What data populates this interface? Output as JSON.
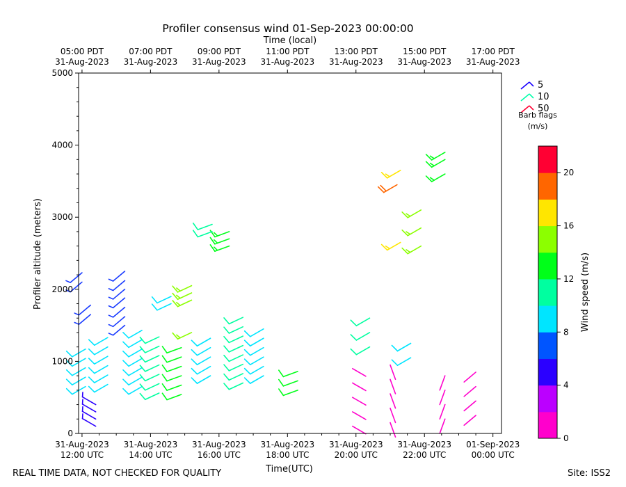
{
  "chart_data": {
    "type": "wind-barb",
    "title": "Profiler consensus wind 01-Sep-2023 00:00:00",
    "top_axis_label": "Time (local)",
    "xlabel": "Time(UTC)",
    "ylabel": "Profiler altitude (meters)",
    "x_range_hours_utc": [
      11.9,
      24.25
    ],
    "ylim": [
      0,
      5000
    ],
    "y_ticks": [
      "0",
      "1000",
      "2000",
      "3000",
      "4000",
      "5000"
    ],
    "x_ticks_utc": [
      {
        "hour": 12,
        "time": "31-Aug-2023",
        "date": "12:00 UTC"
      },
      {
        "hour": 14,
        "time": "31-Aug-2023",
        "date": "14:00 UTC"
      },
      {
        "hour": 16,
        "time": "31-Aug-2023",
        "date": "16:00 UTC"
      },
      {
        "hour": 18,
        "time": "31-Aug-2023",
        "date": "18:00 UTC"
      },
      {
        "hour": 20,
        "time": "31-Aug-2023",
        "date": "20:00 UTC"
      },
      {
        "hour": 22,
        "time": "31-Aug-2023",
        "date": "22:00 UTC"
      },
      {
        "hour": 24,
        "time": "01-Sep-2023",
        "date": "00:00 UTC"
      }
    ],
    "x_ticks_local": [
      {
        "hour": 12,
        "time": "05:00 PDT",
        "date": "31-Aug-2023"
      },
      {
        "hour": 14,
        "time": "07:00 PDT",
        "date": "31-Aug-2023"
      },
      {
        "hour": 16,
        "time": "09:00 PDT",
        "date": "31-Aug-2023"
      },
      {
        "hour": 18,
        "time": "11:00 PDT",
        "date": "31-Aug-2023"
      },
      {
        "hour": 20,
        "time": "13:00 PDT",
        "date": "31-Aug-2023"
      },
      {
        "hour": 22,
        "time": "15:00 PDT",
        "date": "31-Aug-2023"
      },
      {
        "hour": 24,
        "time": "17:00 PDT",
        "date": "31-Aug-2023"
      }
    ],
    "barb_legend": {
      "entries": [
        {
          "label": "5",
          "color": "#1a00ff"
        },
        {
          "label": "10",
          "color": "#00ffaa"
        },
        {
          "label": "50",
          "color": "#ff0033"
        }
      ],
      "title_line1": "Barb flags",
      "title_line2": "(m/s)"
    },
    "colorbar": {
      "label": "Wind speed (m/s)",
      "range": [
        0,
        22
      ],
      "ticks": [
        "0",
        "4",
        "8",
        "12",
        "16",
        "20"
      ],
      "colors": [
        "#ff00cc",
        "#bb00ff",
        "#2b00ff",
        "#0055ff",
        "#00e5ff",
        "#00ffa0",
        "#00ff19",
        "#8cff00",
        "#ffe600",
        "#ff6600",
        "#ff0033"
      ]
    },
    "series": [
      {
        "name": "upper-west-a",
        "time_utc": 12.0,
        "color": "#1a3cff",
        "speed": 7,
        "dir": 230,
        "altitudes": [
          2100,
          2230
        ]
      },
      {
        "name": "upper-west-b",
        "time_utc": 12.25,
        "color": "#1a3cff",
        "speed": 7,
        "dir": 230,
        "altitudes": [
          1650,
          1780
        ]
      },
      {
        "name": "mid-0",
        "time_utc": 12.1,
        "color": "#00e5ff",
        "speed": 9,
        "dir": 240,
        "altitudes": [
          650,
          780,
          910,
          1040,
          1170
        ]
      },
      {
        "name": "mid-1",
        "time_utc": 12.75,
        "color": "#00e5ff",
        "speed": 9,
        "dir": 240,
        "altitudes": [
          680,
          810,
          940,
          1070,
          1200,
          1330
        ]
      },
      {
        "name": "mid-2",
        "time_utc": 13.25,
        "color": "#1a3cff",
        "speed": 7,
        "dir": 230,
        "altitudes": [
          1500,
          1620,
          1750,
          1880,
          2000,
          2120,
          2250
        ]
      },
      {
        "name": "mid-3",
        "time_utc": 13.75,
        "color": "#00e5ff",
        "speed": 9,
        "dir": 240,
        "altitudes": [
          650,
          780,
          910,
          1040,
          1170,
          1300,
          1430
        ]
      },
      {
        "name": "mid-4",
        "time_utc": 14.25,
        "color": "#00ffa0",
        "speed": 11,
        "dir": 245,
        "altitudes": [
          560,
          690,
          820,
          950,
          1080,
          1210,
          1340
        ]
      },
      {
        "name": "mid-5",
        "time_utc": 14.9,
        "color": "#00ff19",
        "speed": 12,
        "dir": 250,
        "altitudes": [
          540,
          670,
          800,
          930,
          1060,
          1190
        ]
      },
      {
        "name": "mid-6",
        "time_utc": 15.75,
        "color": "#00e5ff",
        "speed": 9,
        "dir": 240,
        "altitudes": [
          800,
          930,
          1060,
          1190,
          1320
        ]
      },
      {
        "name": "mid-7",
        "time_utc": 16.7,
        "color": "#00ffa0",
        "speed": 11,
        "dir": 245,
        "altitudes": [
          700,
          830,
          960,
          1090,
          1220,
          1350,
          1480,
          1610
        ]
      },
      {
        "name": "mid-8",
        "time_utc": 17.3,
        "color": "#00e5ff",
        "speed": 9,
        "dir": 240,
        "altitudes": [
          800,
          930,
          1060,
          1190,
          1320,
          1450
        ]
      },
      {
        "name": "mid-9",
        "time_utc": 18.3,
        "color": "#00ff19",
        "speed": 12,
        "dir": 250,
        "altitudes": [
          600,
          730,
          860
        ]
      },
      {
        "name": "upper-green",
        "time_utc": 15.2,
        "color": "#8cff00",
        "speed": 14,
        "dir": 245,
        "altitudes": [
          1400,
          1850,
          1950,
          2050
        ]
      },
      {
        "name": "upper-cyan",
        "time_utc": 14.6,
        "color": "#00e5ff",
        "speed": 10,
        "dir": 245,
        "altitudes": [
          1800,
          1900
        ]
      },
      {
        "name": "high-green",
        "time_utc": 16.3,
        "color": "#00ff19",
        "speed": 13,
        "dir": 250,
        "altitudes": [
          2600,
          2700,
          2800
        ]
      },
      {
        "name": "high-green-b",
        "time_utc": 15.8,
        "color": "#00ffa0",
        "speed": 12,
        "dir": 250,
        "altitudes": [
          2800,
          2900
        ]
      },
      {
        "name": "low-mix",
        "time_utc": 12.4,
        "color": "#2b00ff",
        "speed": 4,
        "dir": 300,
        "altitudes": [
          100,
          200,
          300,
          400
        ]
      },
      {
        "name": "afternoon-1",
        "time_utc": 19.9,
        "color": "#ff00cc",
        "speed": 2,
        "dir": 120,
        "altitudes": [
          100,
          300,
          500,
          700,
          900
        ]
      },
      {
        "name": "afternoon-2",
        "time_utc": 21.0,
        "color": "#ff00cc",
        "speed": 2,
        "dir": 160,
        "altitudes": [
          150,
          350,
          550,
          750,
          950
        ]
      },
      {
        "name": "afternoon-3",
        "time_utc": 22.6,
        "color": "#ff00cc",
        "speed": 2,
        "dir": 200,
        "altitudes": [
          200,
          400,
          600,
          800
        ]
      },
      {
        "name": "afternoon-4",
        "time_utc": 23.5,
        "color": "#ff00cc",
        "speed": 2,
        "dir": 230,
        "altitudes": [
          250,
          450,
          650,
          850
        ]
      },
      {
        "name": "late-mid",
        "time_utc": 20.4,
        "color": "#00ffa0",
        "speed": 11,
        "dir": 240,
        "altitudes": [
          1200,
          1400,
          1600
        ]
      },
      {
        "name": "late-cyan",
        "time_utc": 21.6,
        "color": "#00e5ff",
        "speed": 9,
        "dir": 240,
        "altitudes": [
          1050,
          1250
        ]
      },
      {
        "name": "high-yellow",
        "time_utc": 21.3,
        "color": "#ffe600",
        "speed": 17,
        "dir": 240,
        "altitudes": [
          2650,
          3650
        ]
      },
      {
        "name": "high-orange",
        "time_utc": 21.2,
        "color": "#ff6600",
        "speed": 19,
        "dir": 240,
        "altitudes": [
          3450
        ]
      },
      {
        "name": "high-lime",
        "time_utc": 21.9,
        "color": "#8cff00",
        "speed": 15,
        "dir": 240,
        "altitudes": [
          2600,
          2850,
          3100
        ]
      },
      {
        "name": "very-high",
        "time_utc": 22.6,
        "color": "#00ff19",
        "speed": 13,
        "dir": 240,
        "altitudes": [
          3600,
          3800,
          3900
        ]
      }
    ]
  },
  "footer": {
    "note": "REAL TIME DATA, NOT CHECKED FOR QUALITY",
    "site": "Site: ISS2"
  }
}
